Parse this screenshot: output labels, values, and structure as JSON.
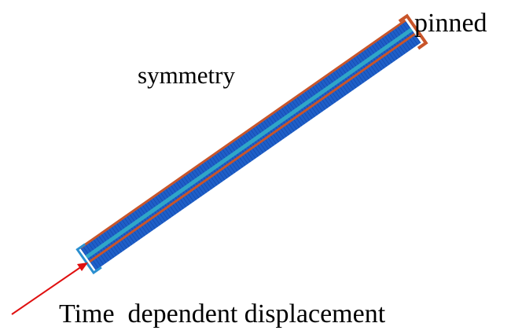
{
  "labels": {
    "pinned": "pinned",
    "symmetry": "symmetry",
    "load": "Time  dependent displacement"
  }
}
